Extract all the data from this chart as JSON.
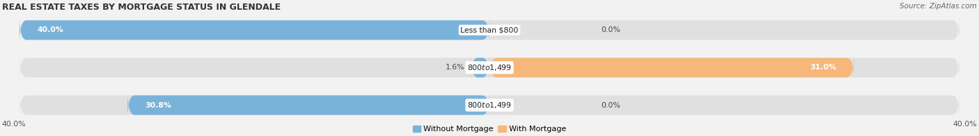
{
  "title": "REAL ESTATE TAXES BY MORTGAGE STATUS IN GLENDALE",
  "source": "Source: ZipAtlas.com",
  "bars": [
    {
      "label": "Less than $800",
      "without_mortgage": 40.0,
      "with_mortgage": 0.0
    },
    {
      "label": "$800 to $1,499",
      "without_mortgage": 1.6,
      "with_mortgage": 31.0
    },
    {
      "label": "$800 to $1,499",
      "without_mortgage": 30.8,
      "with_mortgage": 0.0
    }
  ],
  "x_max": 40.0,
  "x_min": -40.0,
  "color_without": "#7ab3d9",
  "color_with": "#f5b87a",
  "color_bg_bar": "#e0e0e0",
  "title_fontsize": 9.0,
  "source_fontsize": 7.5,
  "bar_height": 0.52,
  "legend_label_without": "Without Mortgage",
  "legend_label_with": "With Mortgage",
  "background_color": "#f2f2f2",
  "label_fontsize": 7.8,
  "pct_fontsize": 7.8
}
